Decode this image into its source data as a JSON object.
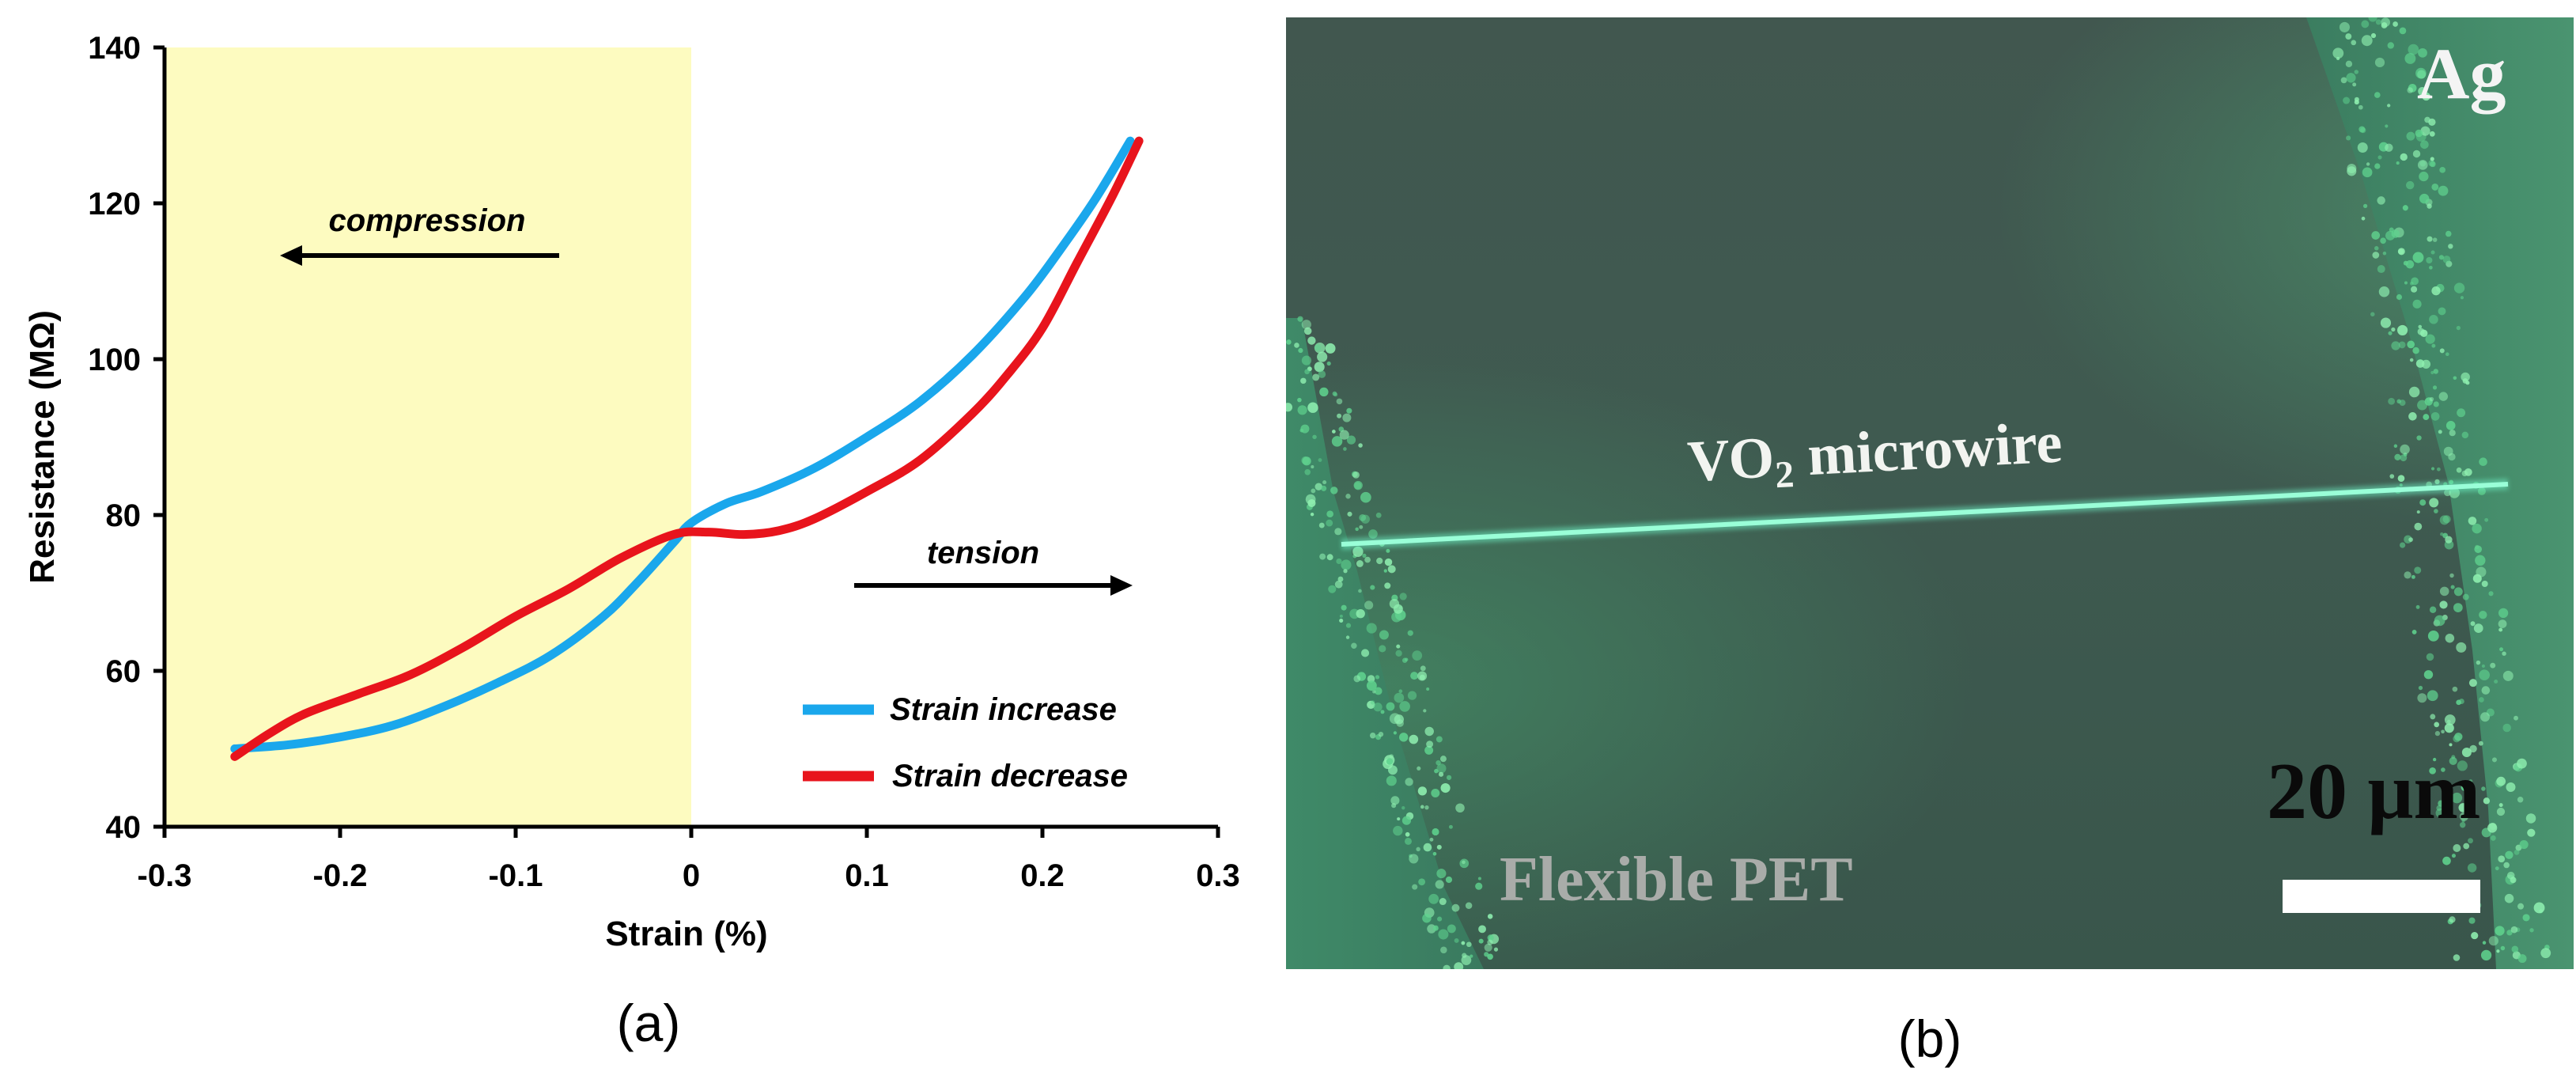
{
  "chart_data": {
    "type": "line",
    "title": "",
    "xlabel": "Strain (%)",
    "ylabel": "Resistance (MΩ)",
    "xlim": [
      -0.3,
      0.3
    ],
    "ylim": [
      40,
      140
    ],
    "x_ticks": [
      -0.3,
      -0.2,
      -0.1,
      0,
      0.1,
      0.2,
      0.3
    ],
    "x_tick_labels": [
      "-0.3",
      "-0.2",
      "-0.1",
      "0",
      "0.1",
      "0.2",
      "0.3"
    ],
    "y_ticks": [
      40,
      60,
      80,
      100,
      120,
      140
    ],
    "y_tick_labels": [
      "40",
      "60",
      "80",
      "100",
      "120",
      "140"
    ],
    "grid": false,
    "legend_position": "bottom-right",
    "shaded_region": {
      "x": [
        -0.3,
        0
      ],
      "color": "#fdfbc0"
    },
    "annotations": [
      {
        "text": "compression",
        "arrow": "left"
      },
      {
        "text": "tension",
        "arrow": "right"
      }
    ],
    "series": [
      {
        "name": "Strain increase",
        "color": "#1aa7ec",
        "x": [
          -0.26,
          -0.23,
          -0.2,
          -0.17,
          -0.14,
          -0.11,
          -0.08,
          -0.05,
          -0.03,
          -0.01,
          0,
          0.02,
          0.04,
          0.07,
          0.1,
          0.13,
          0.16,
          0.19,
          0.21,
          0.23,
          0.25
        ],
        "y": [
          50,
          50.5,
          51.5,
          53,
          55.5,
          58.5,
          62,
          67,
          71.5,
          76.5,
          79,
          81.5,
          83,
          86,
          90,
          94.5,
          100.5,
          108,
          114,
          120.5,
          128
        ]
      },
      {
        "name": "Strain decrease",
        "color": "#e8141c",
        "x": [
          0.255,
          0.24,
          0.22,
          0.2,
          0.18,
          0.16,
          0.13,
          0.1,
          0.07,
          0.05,
          0.03,
          0.01,
          -0.01,
          -0.04,
          -0.07,
          -0.1,
          -0.13,
          -0.16,
          -0.19,
          -0.22,
          -0.24,
          -0.26
        ],
        "y": [
          128,
          121,
          112.5,
          104,
          98,
          93,
          87,
          83,
          79.5,
          78,
          77.5,
          77.8,
          77.5,
          74.5,
          70.5,
          67,
          63,
          59.5,
          57,
          54.5,
          52,
          49
        ]
      }
    ]
  },
  "panel_a_label": "(a)",
  "panel_b_label": "(b)",
  "micrograph": {
    "electrode_label": "Ag",
    "wire_label_main": "VO",
    "wire_label_sub": "2",
    "wire_label_tail": " microwire",
    "substrate_label": "Flexible PET",
    "scale_bar_label": "20 μm"
  }
}
